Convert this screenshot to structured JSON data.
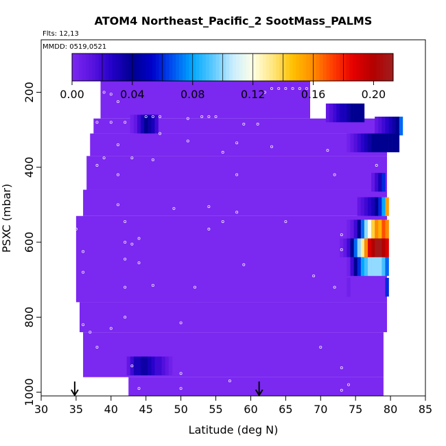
{
  "chart_data": {
    "type": "heatmap",
    "title": "ATOM4 Northeast_Pacific_2 SootMass_PALMS",
    "flights_label": "Flts: 12,13",
    "dates_label": "MMDD: 0519,0521",
    "xlabel": "Latitude (deg N)",
    "ylabel": "PSXC (mbar)",
    "xlim": [
      30,
      85
    ],
    "ylim": [
      1010,
      60
    ],
    "x_ticks": [
      "30",
      "35",
      "40",
      "45",
      "50",
      "55",
      "60",
      "65",
      "70",
      "75",
      "80",
      "85"
    ],
    "y_ticks": [
      "200",
      "400",
      "600",
      "800",
      "1000"
    ],
    "colorbar": {
      "range": [
        0,
        0.213
      ],
      "ticks": [
        "0.00",
        "0.04",
        "0.08",
        "0.12",
        "0.16",
        "0.20"
      ],
      "tick_values": [
        0,
        0.04,
        0.08,
        0.12,
        0.16,
        0.2
      ],
      "colors": [
        "#7b28f0",
        "#5a12e0",
        "#2200c8",
        "#000090",
        "#0000cc",
        "#0050f0",
        "#00a8ff",
        "#5ac8ff",
        "#c8ecff",
        "#ffffe6",
        "#ffe680",
        "#ffc000",
        "#ff8c00",
        "#ff3c00",
        "#e60000",
        "#b40000",
        "#a01e1e"
      ]
    },
    "background_value": 0.0,
    "regions": [
      {
        "lat": [
          38.5,
          68.5
        ],
        "p": [
          170,
          270
        ]
      },
      {
        "lat": [
          37.5,
          80.5
        ],
        "p": [
          270,
          310
        ]
      },
      {
        "lat": [
          37,
          79.5
        ],
        "p": [
          310,
          370
        ]
      },
      {
        "lat": [
          36.5,
          79.5
        ],
        "p": [
          370,
          460
        ]
      },
      {
        "lat": [
          36,
          79.5
        ],
        "p": [
          460,
          530
        ]
      },
      {
        "lat": [
          35,
          79.5
        ],
        "p": [
          530,
          760
        ]
      },
      {
        "lat": [
          35.5,
          79.5
        ],
        "p": [
          760,
          840
        ]
      },
      {
        "lat": [
          36,
          79
        ],
        "p": [
          840,
          960
        ]
      },
      {
        "lat": [
          42.5,
          79
        ],
        "p": [
          960,
          1010
        ]
      }
    ],
    "value_cells": [
      {
        "lat": 71.0,
        "p": 255,
        "v": 0.01
      },
      {
        "lat": 71.5,
        "p": 255,
        "v": 0.015
      },
      {
        "lat": 72.0,
        "p": 255,
        "v": 0.02
      },
      {
        "lat": 72.5,
        "p": 255,
        "v": 0.025
      },
      {
        "lat": 73.0,
        "p": 255,
        "v": 0.03
      },
      {
        "lat": 73.5,
        "p": 255,
        "v": 0.03
      },
      {
        "lat": 74.0,
        "p": 255,
        "v": 0.035
      },
      {
        "lat": 74.5,
        "p": 255,
        "v": 0.04
      },
      {
        "lat": 75.0,
        "p": 255,
        "v": 0.04
      },
      {
        "lat": 75.5,
        "p": 255,
        "v": 0.04
      },
      {
        "lat": 76.0,
        "p": 255,
        "v": 0.04
      },
      {
        "lat": 43.0,
        "p": 285,
        "v": 0.005
      },
      {
        "lat": 43.5,
        "p": 285,
        "v": 0.01
      },
      {
        "lat": 44.0,
        "p": 285,
        "v": 0.02
      },
      {
        "lat": 44.5,
        "p": 285,
        "v": 0.03
      },
      {
        "lat": 45.0,
        "p": 285,
        "v": 0.04
      },
      {
        "lat": 45.5,
        "p": 285,
        "v": 0.035
      },
      {
        "lat": 46.0,
        "p": 285,
        "v": 0.03
      },
      {
        "lat": 46.5,
        "p": 285,
        "v": 0.02
      },
      {
        "lat": 78.0,
        "p": 290,
        "v": 0.01
      },
      {
        "lat": 78.5,
        "p": 290,
        "v": 0.015
      },
      {
        "lat": 79.0,
        "p": 290,
        "v": 0.02
      },
      {
        "lat": 79.5,
        "p": 290,
        "v": 0.025
      },
      {
        "lat": 80.0,
        "p": 290,
        "v": 0.03
      },
      {
        "lat": 80.5,
        "p": 290,
        "v": 0.035
      },
      {
        "lat": 81.0,
        "p": 290,
        "v": 0.04
      },
      {
        "lat": 81.5,
        "p": 290,
        "v": 0.07
      },
      {
        "lat": 74.0,
        "p": 335,
        "v": 0.005
      },
      {
        "lat": 74.5,
        "p": 335,
        "v": 0.01
      },
      {
        "lat": 75.0,
        "p": 335,
        "v": 0.015
      },
      {
        "lat": 75.5,
        "p": 335,
        "v": 0.02
      },
      {
        "lat": 76.0,
        "p": 335,
        "v": 0.025
      },
      {
        "lat": 76.5,
        "p": 335,
        "v": 0.03
      },
      {
        "lat": 77.0,
        "p": 335,
        "v": 0.035
      },
      {
        "lat": 77.5,
        "p": 335,
        "v": 0.04
      },
      {
        "lat": 78.0,
        "p": 335,
        "v": 0.04
      },
      {
        "lat": 78.5,
        "p": 335,
        "v": 0.04
      },
      {
        "lat": 79.0,
        "p": 335,
        "v": 0.04
      },
      {
        "lat": 79.5,
        "p": 335,
        "v": 0.04
      },
      {
        "lat": 80.0,
        "p": 335,
        "v": 0.04
      },
      {
        "lat": 80.5,
        "p": 335,
        "v": 0.04
      },
      {
        "lat": 81.0,
        "p": 335,
        "v": 0.04
      },
      {
        "lat": 77.5,
        "p": 440,
        "v": 0.01
      },
      {
        "lat": 78.0,
        "p": 440,
        "v": 0.02
      },
      {
        "lat": 78.5,
        "p": 440,
        "v": 0.03
      },
      {
        "lat": 79.0,
        "p": 440,
        "v": 0.06
      },
      {
        "lat": 75.5,
        "p": 505,
        "v": 0.01
      },
      {
        "lat": 76.0,
        "p": 505,
        "v": 0.015
      },
      {
        "lat": 76.5,
        "p": 505,
        "v": 0.02
      },
      {
        "lat": 77.0,
        "p": 505,
        "v": 0.025
      },
      {
        "lat": 77.5,
        "p": 505,
        "v": 0.03
      },
      {
        "lat": 78.0,
        "p": 505,
        "v": 0.04
      },
      {
        "lat": 78.5,
        "p": 505,
        "v": 0.06
      },
      {
        "lat": 79.0,
        "p": 505,
        "v": 0.08
      },
      {
        "lat": 79.5,
        "p": 505,
        "v": 0.155
      },
      {
        "lat": 74.0,
        "p": 565,
        "v": 0.005
      },
      {
        "lat": 74.5,
        "p": 565,
        "v": 0.01
      },
      {
        "lat": 75.0,
        "p": 565,
        "v": 0.02
      },
      {
        "lat": 75.5,
        "p": 565,
        "v": 0.04
      },
      {
        "lat": 76.0,
        "p": 565,
        "v": 0.07
      },
      {
        "lat": 76.5,
        "p": 565,
        "v": 0.1
      },
      {
        "lat": 77.0,
        "p": 565,
        "v": 0.12
      },
      {
        "lat": 77.5,
        "p": 565,
        "v": 0.14
      },
      {
        "lat": 78.0,
        "p": 565,
        "v": 0.16
      },
      {
        "lat": 78.5,
        "p": 565,
        "v": 0.15
      },
      {
        "lat": 79.0,
        "p": 565,
        "v": 0.17
      },
      {
        "lat": 79.5,
        "p": 565,
        "v": 0.16
      },
      {
        "lat": 73.0,
        "p": 615,
        "v": 0.005
      },
      {
        "lat": 73.5,
        "p": 615,
        "v": 0.01
      },
      {
        "lat": 74.0,
        "p": 615,
        "v": 0.02
      },
      {
        "lat": 74.5,
        "p": 615,
        "v": 0.04
      },
      {
        "lat": 75.0,
        "p": 615,
        "v": 0.07
      },
      {
        "lat": 75.5,
        "p": 615,
        "v": 0.1
      },
      {
        "lat": 76.0,
        "p": 615,
        "v": 0.13
      },
      {
        "lat": 76.5,
        "p": 615,
        "v": 0.16
      },
      {
        "lat": 77.0,
        "p": 615,
        "v": 0.19
      },
      {
        "lat": 77.5,
        "p": 615,
        "v": 0.2
      },
      {
        "lat": 78.0,
        "p": 615,
        "v": 0.21
      },
      {
        "lat": 78.5,
        "p": 615,
        "v": 0.21
      },
      {
        "lat": 79.0,
        "p": 615,
        "v": 0.2
      },
      {
        "lat": 79.5,
        "p": 615,
        "v": 0.19
      },
      {
        "lat": 74.0,
        "p": 665,
        "v": 0.005
      },
      {
        "lat": 74.5,
        "p": 665,
        "v": 0.02
      },
      {
        "lat": 75.0,
        "p": 665,
        "v": 0.04
      },
      {
        "lat": 75.5,
        "p": 665,
        "v": 0.06
      },
      {
        "lat": 76.0,
        "p": 665,
        "v": 0.08
      },
      {
        "lat": 76.5,
        "p": 665,
        "v": 0.09
      },
      {
        "lat": 77.0,
        "p": 665,
        "v": 0.1
      },
      {
        "lat": 77.5,
        "p": 665,
        "v": 0.1
      },
      {
        "lat": 78.0,
        "p": 665,
        "v": 0.1
      },
      {
        "lat": 78.5,
        "p": 665,
        "v": 0.1
      },
      {
        "lat": 79.0,
        "p": 665,
        "v": 0.09
      },
      {
        "lat": 79.5,
        "p": 665,
        "v": 0.07
      },
      {
        "lat": 74.0,
        "p": 720,
        "v": 0.005
      },
      {
        "lat": 79.5,
        "p": 720,
        "v": 0.06
      },
      {
        "lat": 42.5,
        "p": 930,
        "v": 0.01
      },
      {
        "lat": 43.0,
        "p": 930,
        "v": 0.02
      },
      {
        "lat": 43.5,
        "p": 930,
        "v": 0.03
      },
      {
        "lat": 44.0,
        "p": 930,
        "v": 0.03
      },
      {
        "lat": 44.5,
        "p": 930,
        "v": 0.035
      },
      {
        "lat": 45.0,
        "p": 930,
        "v": 0.035
      },
      {
        "lat": 45.5,
        "p": 930,
        "v": 0.03
      },
      {
        "lat": 46.0,
        "p": 930,
        "v": 0.025
      },
      {
        "lat": 46.5,
        "p": 930,
        "v": 0.02
      },
      {
        "lat": 47.0,
        "p": 930,
        "v": 0.02
      },
      {
        "lat": 47.5,
        "p": 930,
        "v": 0.015
      },
      {
        "lat": 48.0,
        "p": 930,
        "v": 0.01
      },
      {
        "lat": 48.5,
        "p": 930,
        "v": 0.005
      }
    ],
    "sample_points": [
      {
        "lat": 39,
        "p": 200
      },
      {
        "lat": 40,
        "p": 205
      },
      {
        "lat": 64,
        "p": 190
      },
      {
        "lat": 65,
        "p": 190
      },
      {
        "lat": 66,
        "p": 190
      },
      {
        "lat": 67,
        "p": 190
      },
      {
        "lat": 68,
        "p": 190
      },
      {
        "lat": 63,
        "p": 190
      },
      {
        "lat": 62,
        "p": 200
      },
      {
        "lat": 70,
        "p": 210
      },
      {
        "lat": 41,
        "p": 225
      },
      {
        "lat": 38,
        "p": 280
      },
      {
        "lat": 40,
        "p": 280
      },
      {
        "lat": 42,
        "p": 280
      },
      {
        "lat": 45,
        "p": 265
      },
      {
        "lat": 46,
        "p": 265
      },
      {
        "lat": 47,
        "p": 265
      },
      {
        "lat": 51,
        "p": 270
      },
      {
        "lat": 53,
        "p": 265
      },
      {
        "lat": 54,
        "p": 265
      },
      {
        "lat": 55,
        "p": 265
      },
      {
        "lat": 59,
        "p": 285
      },
      {
        "lat": 61,
        "p": 285
      },
      {
        "lat": 47,
        "p": 310
      },
      {
        "lat": 51,
        "p": 330
      },
      {
        "lat": 41,
        "p": 340
      },
      {
        "lat": 39,
        "p": 375
      },
      {
        "lat": 58,
        "p": 335
      },
      {
        "lat": 63,
        "p": 345
      },
      {
        "lat": 56,
        "p": 360
      },
      {
        "lat": 43,
        "p": 375
      },
      {
        "lat": 38,
        "p": 395
      },
      {
        "lat": 46,
        "p": 380
      },
      {
        "lat": 71,
        "p": 355
      },
      {
        "lat": 78,
        "p": 395
      },
      {
        "lat": 41,
        "p": 420
      },
      {
        "lat": 58,
        "p": 420
      },
      {
        "lat": 72,
        "p": 420
      },
      {
        "lat": 41,
        "p": 500
      },
      {
        "lat": 49,
        "p": 510
      },
      {
        "lat": 54,
        "p": 505
      },
      {
        "lat": 58,
        "p": 520
      },
      {
        "lat": 42,
        "p": 545
      },
      {
        "lat": 56,
        "p": 545
      },
      {
        "lat": 65,
        "p": 545
      },
      {
        "lat": 35,
        "p": 565
      },
      {
        "lat": 44,
        "p": 590
      },
      {
        "lat": 43,
        "p": 605
      },
      {
        "lat": 36,
        "p": 625
      },
      {
        "lat": 42,
        "p": 600
      },
      {
        "lat": 54,
        "p": 565
      },
      {
        "lat": 73,
        "p": 580
      },
      {
        "lat": 73,
        "p": 620
      },
      {
        "lat": 42,
        "p": 645
      },
      {
        "lat": 44,
        "p": 655
      },
      {
        "lat": 59,
        "p": 660
      },
      {
        "lat": 36,
        "p": 680
      },
      {
        "lat": 42,
        "p": 720
      },
      {
        "lat": 46,
        "p": 715
      },
      {
        "lat": 52,
        "p": 720
      },
      {
        "lat": 69,
        "p": 690
      },
      {
        "lat": 72,
        "p": 720
      },
      {
        "lat": 36,
        "p": 820
      },
      {
        "lat": 37,
        "p": 840
      },
      {
        "lat": 50,
        "p": 815
      },
      {
        "lat": 42,
        "p": 800
      },
      {
        "lat": 40,
        "p": 830
      },
      {
        "lat": 38,
        "p": 880
      },
      {
        "lat": 70,
        "p": 880
      },
      {
        "lat": 43,
        "p": 930
      },
      {
        "lat": 50,
        "p": 950
      },
      {
        "lat": 73,
        "p": 935
      },
      {
        "lat": 57,
        "p": 970
      },
      {
        "lat": 50,
        "p": 990
      },
      {
        "lat": 44,
        "p": 990
      },
      {
        "lat": 74,
        "p": 980
      },
      {
        "lat": 73,
        "p": 995
      }
    ],
    "flight_markers": [
      34.8,
      61.2
    ]
  }
}
